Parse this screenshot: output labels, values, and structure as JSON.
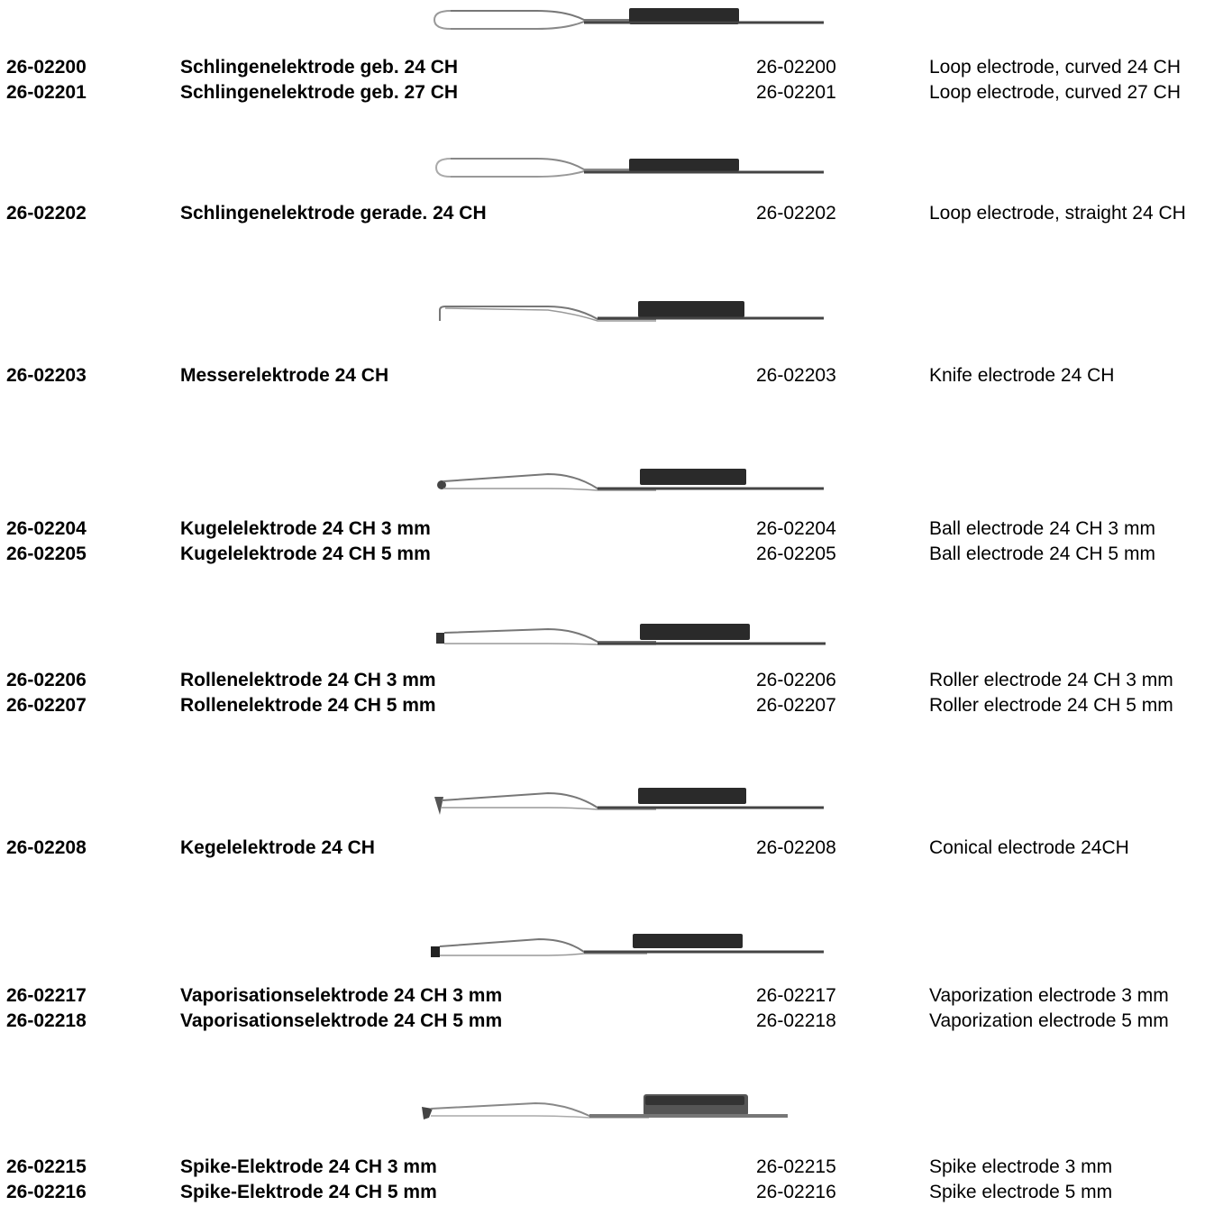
{
  "products": [
    {
      "illustration": "loop-electrode-curved",
      "items": [
        {
          "code_de": "26-02200",
          "name_de": "Schlingenelektrode geb. 24 CH",
          "code_en": "26-02200",
          "name_en": "Loop electrode, curved 24 CH"
        },
        {
          "code_de": "26-02201",
          "name_de": "Schlingenelektrode geb. 27 CH",
          "code_en": "26-02201",
          "name_en": "Loop electrode, curved 27 CH"
        }
      ]
    },
    {
      "illustration": "loop-electrode-straight",
      "items": [
        {
          "code_de": "26-02202",
          "name_de": "Schlingenelektrode gerade. 24 CH",
          "code_en": "26-02202",
          "name_en": "Loop electrode, straight 24 CH"
        }
      ]
    },
    {
      "illustration": "knife-electrode",
      "items": [
        {
          "code_de": "26-02203",
          "name_de": "Messerelektrode 24 CH",
          "code_en": "26-02203",
          "name_en": "Knife electrode 24 CH"
        }
      ]
    },
    {
      "illustration": "ball-electrode",
      "items": [
        {
          "code_de": "26-02204",
          "name_de": "Kugelelektrode 24 CH 3 mm",
          "code_en": "26-02204",
          "name_en": "Ball electrode 24 CH 3 mm"
        },
        {
          "code_de": "26-02205",
          "name_de": "Kugelelektrode 24 CH 5 mm",
          "code_en": "26-02205",
          "name_en": "Ball electrode 24 CH 5 mm"
        }
      ]
    },
    {
      "illustration": "roller-electrode",
      "items": [
        {
          "code_de": "26-02206",
          "name_de": "Rollenelektrode 24 CH 3 mm",
          "code_en": "26-02206",
          "name_en": "Roller electrode 24 CH 3 mm"
        },
        {
          "code_de": "26-02207",
          "name_de": "Rollenelektrode 24 CH 5 mm",
          "code_en": "26-02207",
          "name_en": "Roller electrode 24 CH 5 mm"
        }
      ]
    },
    {
      "illustration": "conical-electrode",
      "items": [
        {
          "code_de": "26-02208",
          "name_de": "Kegelelektrode 24 CH",
          "code_en": "26-02208",
          "name_en": "Conical electrode 24CH"
        }
      ]
    },
    {
      "illustration": "vaporization-electrode",
      "items": [
        {
          "code_de": "26-02217",
          "name_de": "Vaporisationselektrode 24 CH 3 mm",
          "code_en": "26-02217",
          "name_en": "Vaporization electrode 3 mm"
        },
        {
          "code_de": "26-02218",
          "name_de": "Vaporisationselektrode 24 CH 5 mm",
          "code_en": "26-02218",
          "name_en": "Vaporization electrode 5 mm"
        }
      ]
    },
    {
      "illustration": "spike-electrode",
      "items": [
        {
          "code_de": "26-02215",
          "name_de": "Spike-Elektrode 24 CH 3 mm",
          "code_en": "26-02215",
          "name_en": "Spike electrode  3 mm"
        },
        {
          "code_de": "26-02216",
          "name_de": "Spike-Elektrode 24 CH 5 mm",
          "code_en": "26-02216",
          "name_en": "Spike electrode  5 mm"
        }
      ]
    }
  ]
}
